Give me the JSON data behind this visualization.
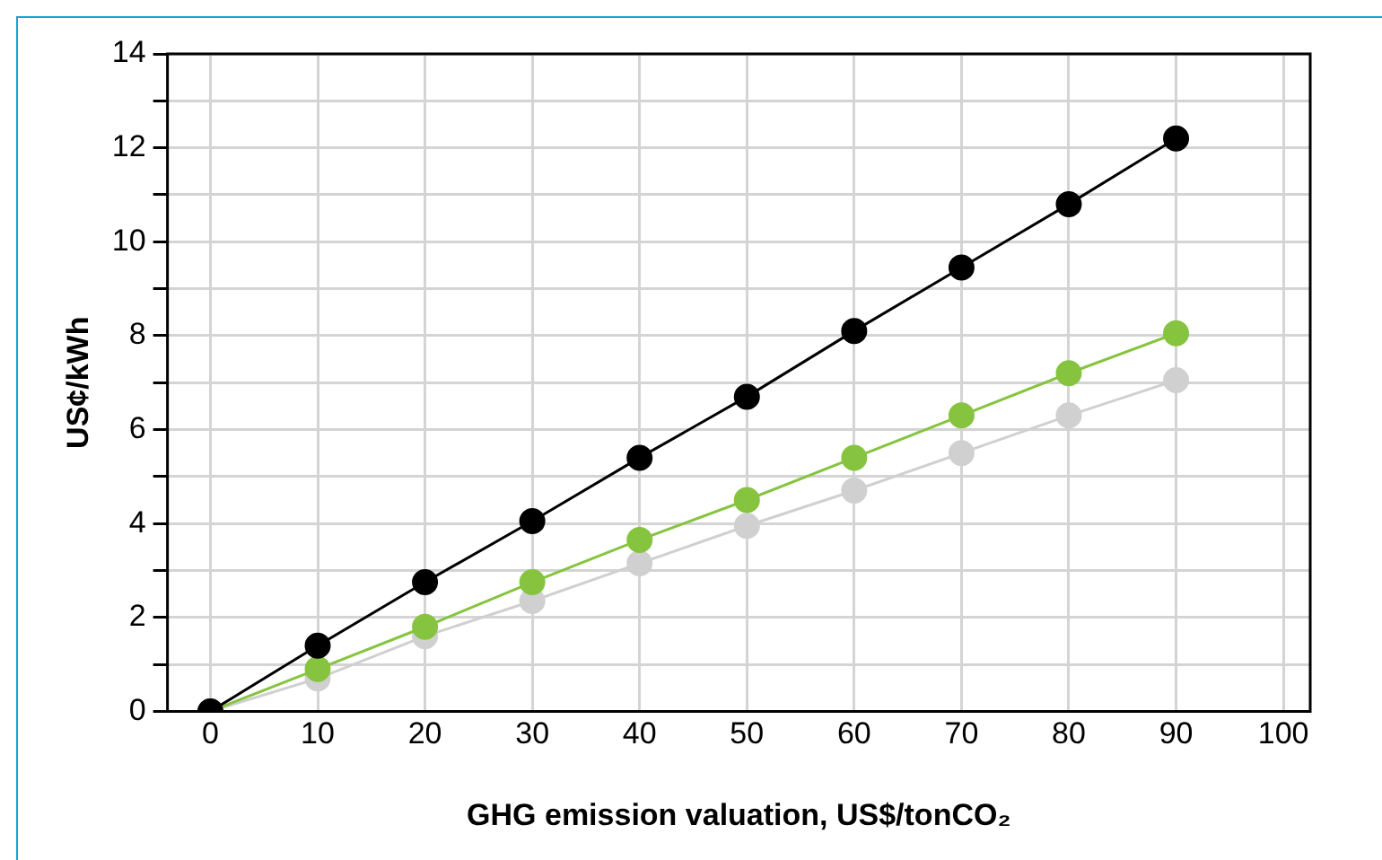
{
  "chart_data": {
    "type": "line",
    "xlabel": "GHG emission valuation, US$/tonCO₂",
    "ylabel": "US¢/kWh",
    "x": [
      0,
      10,
      20,
      30,
      40,
      50,
      60,
      70,
      80,
      90
    ],
    "series": [
      {
        "color": "#d0d0d0",
        "marker": "circle",
        "values": [
          0,
          0.7,
          1.6,
          2.35,
          3.15,
          3.95,
          4.7,
          5.5,
          6.3,
          7.05
        ]
      },
      {
        "color": "#86c440",
        "marker": "circle",
        "values": [
          0,
          0.9,
          1.8,
          2.75,
          3.65,
          4.5,
          5.4,
          6.3,
          7.2,
          8.05
        ]
      },
      {
        "color": "#000000",
        "marker": "circle",
        "values": [
          0,
          1.4,
          2.75,
          4.05,
          5.4,
          6.7,
          8.1,
          9.45,
          10.8,
          12.2
        ]
      }
    ],
    "xlim": [
      -4,
      102.5
    ],
    "xticks": [
      0,
      10,
      20,
      30,
      40,
      50,
      60,
      70,
      80,
      90,
      100
    ],
    "ylim": [
      0,
      14
    ],
    "yticks": [
      0,
      {
        "value": 1,
        "label": null
      },
      2,
      {
        "value": 3,
        "label": null
      },
      4,
      {
        "value": 5,
        "label": null
      },
      6,
      {
        "value": 7,
        "label": null
      },
      8,
      {
        "value": 9,
        "label": null
      },
      10,
      {
        "value": 11,
        "label": null
      },
      12,
      {
        "value": 13,
        "label": null
      },
      14
    ],
    "grid": true,
    "legend": false,
    "line_style": "solid"
  }
}
